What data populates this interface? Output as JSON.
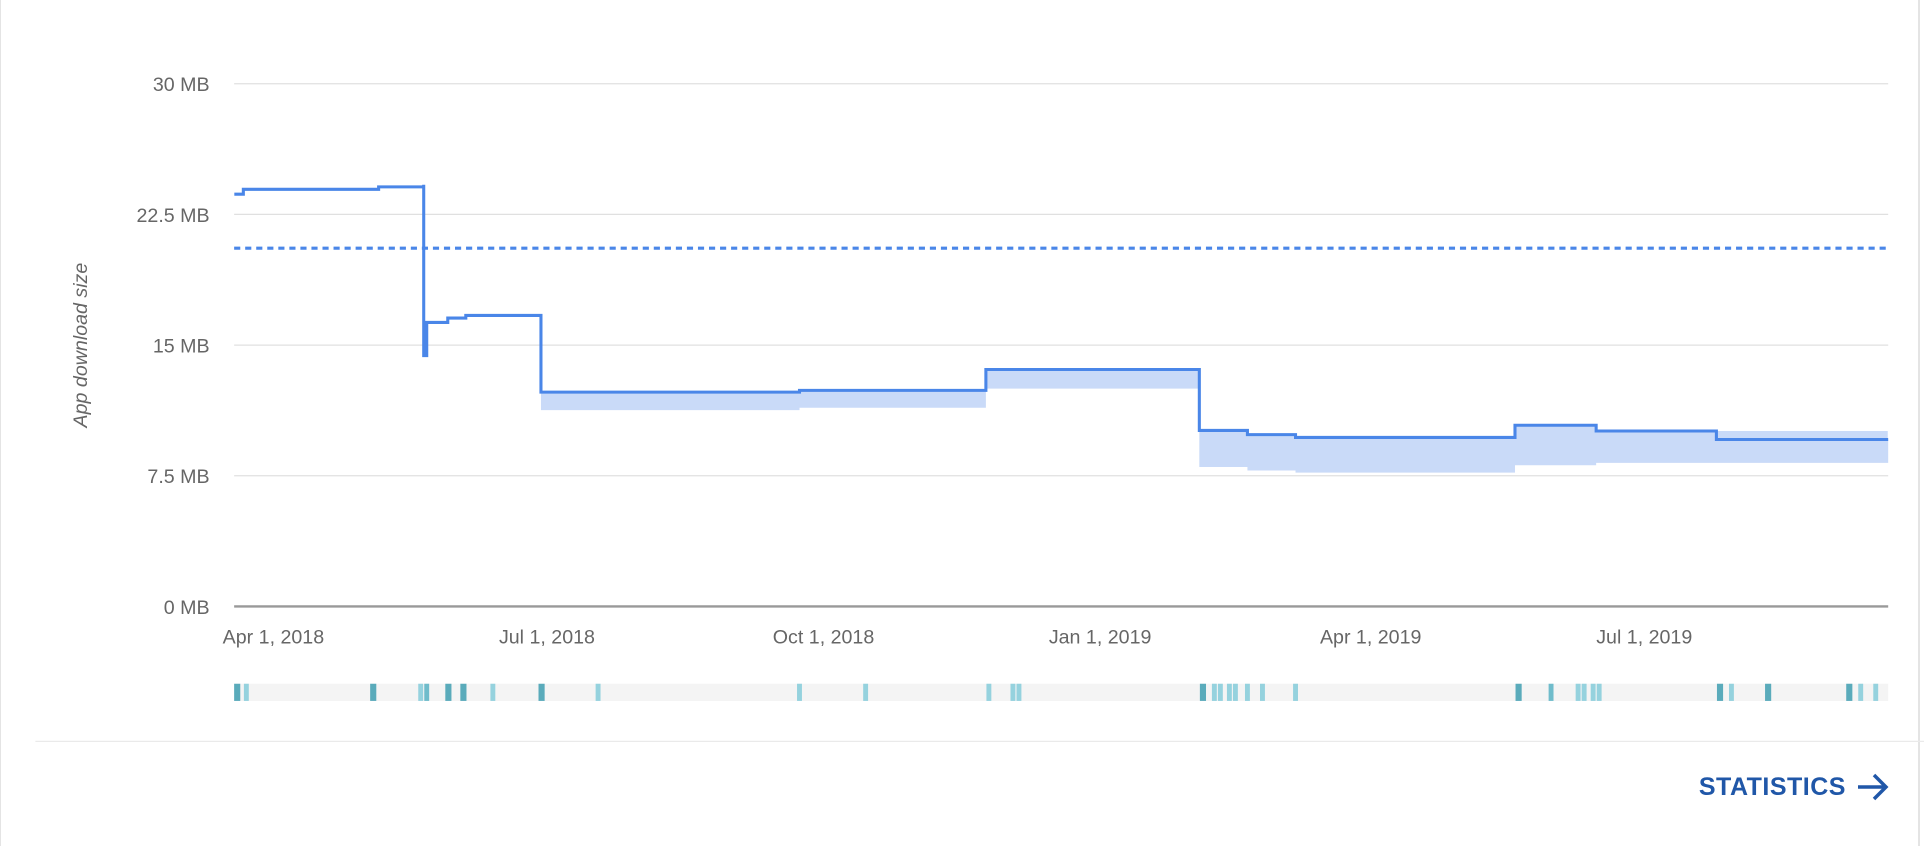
{
  "chart_data": {
    "type": "line",
    "step": true,
    "ylabel": "App download size",
    "xlabel": "",
    "ylim": [
      0,
      30
    ],
    "xlim": [
      "2018-03-19",
      "2019-09-20"
    ],
    "y_ticks": [
      "0 MB",
      "7.5 MB",
      "15 MB",
      "22.5 MB",
      "30 MB"
    ],
    "y_tick_values": [
      0,
      7.5,
      15,
      22.5,
      30
    ],
    "x_ticks": [
      "Apr 1, 2018",
      "Jul 1, 2018",
      "Oct 1, 2018",
      "Jan 1, 2019",
      "Apr 1, 2019",
      "Jul 1, 2019"
    ],
    "x_tick_dates": [
      "2018-04-01",
      "2018-07-01",
      "2018-10-01",
      "2019-01-01",
      "2019-04-01",
      "2019-07-01"
    ],
    "grid": true,
    "units": "MB",
    "series": [
      {
        "type": "step-line",
        "color": "#4a86e8",
        "points": [
          [
            "2018-03-19",
            23.66
          ],
          [
            "2018-03-22",
            23.94
          ],
          [
            "2018-05-06",
            24.08
          ],
          [
            "2018-05-21",
            24.2
          ],
          [
            "2018-05-21",
            14.4
          ],
          [
            "2018-05-22",
            16.3
          ],
          [
            "2018-05-29",
            16.55
          ],
          [
            "2018-06-04",
            16.7
          ],
          [
            "2018-06-29",
            12.3
          ],
          [
            "2018-09-23",
            12.4
          ],
          [
            "2018-11-24",
            13.6
          ],
          [
            "2019-02-03",
            10.1
          ],
          [
            "2019-02-19",
            9.86
          ],
          [
            "2019-03-07",
            9.7
          ],
          [
            "2019-05-19",
            10.4
          ],
          [
            "2019-06-15",
            10.07
          ],
          [
            "2019-07-25",
            9.58
          ],
          [
            "2019-09-20",
            9.58
          ]
        ]
      },
      {
        "type": "range-band-lower",
        "color": "#c9daf8",
        "points": [
          [
            "2018-06-29",
            11.27
          ],
          [
            "2018-09-23",
            11.4
          ],
          [
            "2018-11-24",
            12.5
          ],
          [
            "2019-02-03",
            8.0
          ],
          [
            "2019-02-19",
            7.8
          ],
          [
            "2019-03-07",
            7.68
          ],
          [
            "2019-05-19",
            8.1
          ],
          [
            "2019-06-15",
            8.24
          ],
          [
            "2019-09-20",
            8.24
          ]
        ]
      }
    ],
    "reference_line": {
      "value": 20.56,
      "style": "dotted",
      "color": "#4a86e8"
    },
    "event_strip": {
      "background": "#f4f4f4",
      "colors": {
        "dark": "#5aabbb",
        "mid": "#6fbccb",
        "light": "#95d2de"
      },
      "events": [
        [
          "2018-03-19",
          "dark"
        ],
        [
          "2018-03-23",
          "light"
        ],
        [
          "2018-05-04",
          "dark"
        ],
        [
          "2018-05-20",
          "light"
        ],
        [
          "2018-05-22",
          "mid"
        ],
        [
          "2018-05-29",
          "dark"
        ],
        [
          "2018-06-03",
          "dark"
        ],
        [
          "2018-06-13",
          "light"
        ],
        [
          "2018-06-29",
          "dark"
        ],
        [
          "2018-07-18",
          "light"
        ],
        [
          "2018-09-23",
          "light"
        ],
        [
          "2018-10-15",
          "light"
        ],
        [
          "2018-11-25",
          "light"
        ],
        [
          "2018-12-03",
          "light"
        ],
        [
          "2018-12-05",
          "light"
        ],
        [
          "2019-02-04",
          "dark"
        ],
        [
          "2019-02-08",
          "light"
        ],
        [
          "2019-02-10",
          "light"
        ],
        [
          "2019-02-13",
          "light"
        ],
        [
          "2019-02-15",
          "light"
        ],
        [
          "2019-02-19",
          "light"
        ],
        [
          "2019-02-24",
          "light"
        ],
        [
          "2019-03-07",
          "light"
        ],
        [
          "2019-05-20",
          "dark"
        ],
        [
          "2019-05-31",
          "mid"
        ],
        [
          "2019-06-09",
          "light"
        ],
        [
          "2019-06-11",
          "light"
        ],
        [
          "2019-06-14",
          "light"
        ],
        [
          "2019-06-16",
          "light"
        ],
        [
          "2019-07-26",
          "dark"
        ],
        [
          "2019-07-30",
          "light"
        ],
        [
          "2019-08-11",
          "dark"
        ],
        [
          "2019-09-07",
          "dark"
        ],
        [
          "2019-09-11",
          "light"
        ],
        [
          "2019-09-16",
          "light"
        ]
      ]
    }
  },
  "footer": {
    "statistics_label": "STATISTICS",
    "statistics_icon": "arrow-right-icon",
    "accent": "#2057a8"
  }
}
